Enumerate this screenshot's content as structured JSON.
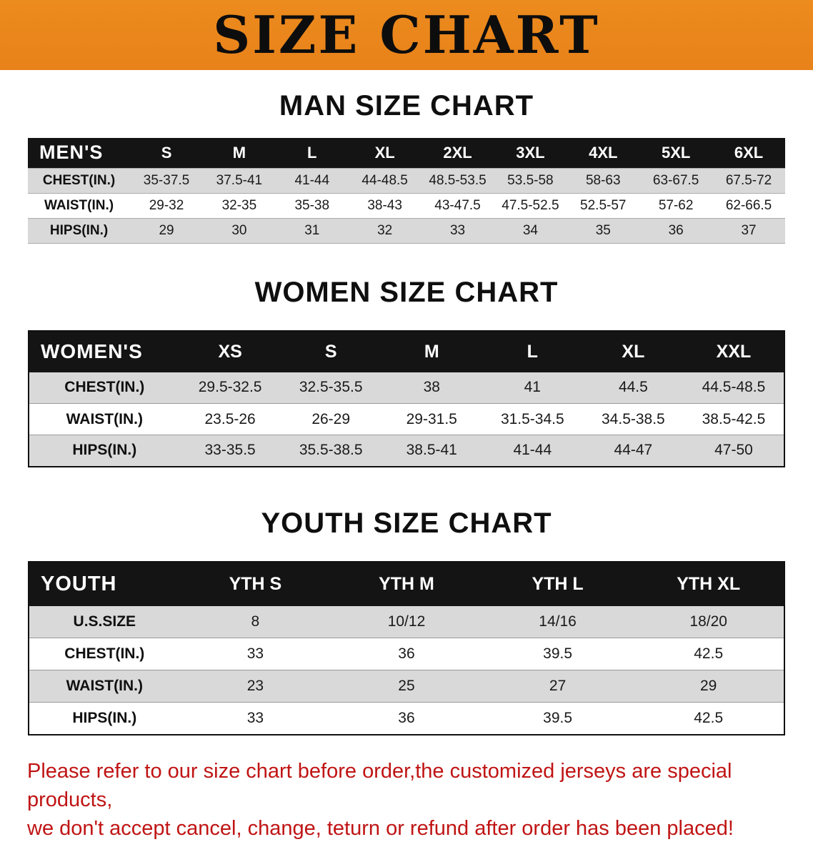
{
  "banner": {
    "title": "SIZE CHART"
  },
  "chart_data": [
    {
      "type": "table",
      "id": "men",
      "title": "MAN SIZE CHART",
      "columns": [
        "MEN'S",
        "S",
        "M",
        "L",
        "XL",
        "2XL",
        "3XL",
        "4XL",
        "5XL",
        "6XL"
      ],
      "rows": [
        [
          "CHEST(IN.)",
          "35-37.5",
          "37.5-41",
          "41-44",
          "44-48.5",
          "48.5-53.5",
          "53.5-58",
          "58-63",
          "63-67.5",
          "67.5-72"
        ],
        [
          "WAIST(IN.)",
          "29-32",
          "32-35",
          "35-38",
          "38-43",
          "43-47.5",
          "47.5-52.5",
          "52.5-57",
          "57-62",
          "62-66.5"
        ],
        [
          "HIPS(IN.)",
          "29",
          "30",
          "31",
          "32",
          "33",
          "34",
          "35",
          "36",
          "37"
        ]
      ]
    },
    {
      "type": "table",
      "id": "women",
      "title": "WOMEN SIZE CHART",
      "columns": [
        "WOMEN'S",
        "XS",
        "S",
        "M",
        "L",
        "XL",
        "XXL"
      ],
      "rows": [
        [
          "CHEST(IN.)",
          "29.5-32.5",
          "32.5-35.5",
          "38",
          "41",
          "44.5",
          "44.5-48.5"
        ],
        [
          "WAIST(IN.)",
          "23.5-26",
          "26-29",
          "29-31.5",
          "31.5-34.5",
          "34.5-38.5",
          "38.5-42.5"
        ],
        [
          "HIPS(IN.)",
          "33-35.5",
          "35.5-38.5",
          "38.5-41",
          "41-44",
          "44-47",
          "47-50"
        ]
      ]
    },
    {
      "type": "table",
      "id": "youth",
      "title": "YOUTH SIZE CHART",
      "columns": [
        "YOUTH",
        "YTH S",
        "YTH M",
        "YTH L",
        "YTH XL"
      ],
      "rows": [
        [
          "U.S.SIZE",
          "8",
          "10/12",
          "14/16",
          "18/20"
        ],
        [
          "CHEST(IN.)",
          "33",
          "36",
          "39.5",
          "42.5"
        ],
        [
          "WAIST(IN.)",
          "23",
          "25",
          "27",
          "29"
        ],
        [
          "HIPS(IN.)",
          "33",
          "36",
          "39.5",
          "42.5"
        ]
      ]
    }
  ],
  "footer_note": {
    "lines": [
      "Please refer to our size chart before order,the customized jerseys are special products,",
      "we don't accept cancel, change, teturn or refund after order has been placed!"
    ]
  },
  "colors": {
    "banner_orange": "#EC8B1E",
    "header_black": "#141414",
    "row_gray": "#D9D9D9",
    "note_red": "#C01414"
  }
}
